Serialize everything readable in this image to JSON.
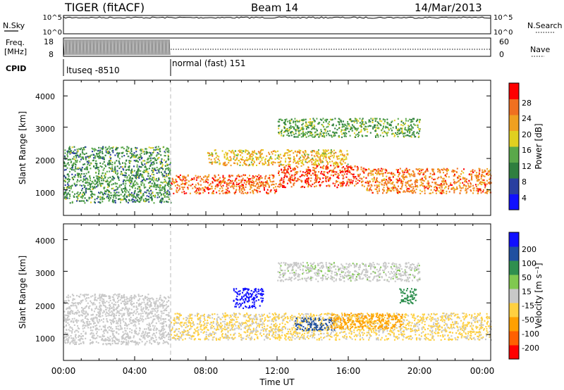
{
  "header": {
    "title": "TIGER (fitACF)",
    "beam": "Beam 14",
    "date": "14/Mar/2013"
  },
  "top_panels": {
    "nsky": {
      "label": "N.Sky",
      "ticks_left": [
        "10^5",
        "10^0"
      ],
      "ticks_right": [
        "10^5",
        "10^0"
      ],
      "right_label": "N.Search"
    },
    "freq": {
      "label_line1": "Freq.",
      "label_line2": "[MHz]",
      "ticks_left": [
        "18",
        "8"
      ],
      "ticks_right": [
        "60",
        "0"
      ],
      "right_label": "Nave"
    },
    "cpid": {
      "label": "CPID",
      "segments": [
        {
          "label": "ltuseq -8510",
          "start_hour": 0,
          "end_hour": 6
        },
        {
          "label": "normal (fast) 151",
          "start_hour": 6,
          "end_hour": 24
        }
      ]
    }
  },
  "colors": {
    "power": [
      "#1010ff",
      "#2a3fa0",
      "#2f7f3f",
      "#5aa84a",
      "#e0d020",
      "#f0a020",
      "#f07020",
      "#ff0000"
    ],
    "velocity": [
      "#ff0000",
      "#ff6000",
      "#ffa000",
      "#ffd040",
      "#c8c8c8",
      "#80c850",
      "#2f8f4f",
      "#2050a0",
      "#1010ff"
    ]
  },
  "chart_data": [
    {
      "type": "heatmap",
      "name": "power",
      "title": "",
      "xlabel": "",
      "ylabel": "Slant Range [km]",
      "xlim": [
        0,
        24
      ],
      "ylim": [
        180,
        4500
      ],
      "yticks": [
        "1000",
        "2000",
        "3000",
        "4000"
      ],
      "colorbar": {
        "label": "Power [dB]",
        "range": [
          0,
          32
        ],
        "ticks": [
          "4",
          "8",
          "12",
          "16",
          "20",
          "24",
          "28"
        ]
      },
      "bands": [
        {
          "t0": 0,
          "t1": 6,
          "r0": 600,
          "r1": 2400,
          "level": 0.35
        },
        {
          "t0": 6,
          "t1": 12,
          "r0": 900,
          "r1": 1500,
          "level": 0.85
        },
        {
          "t0": 12,
          "t1": 17,
          "r0": 1100,
          "r1": 1800,
          "level": 0.9
        },
        {
          "t0": 17,
          "t1": 24,
          "r0": 900,
          "r1": 1700,
          "level": 0.8
        },
        {
          "t0": 8,
          "t1": 16,
          "r0": 1800,
          "r1": 2300,
          "level": 0.65
        },
        {
          "t0": 12,
          "t1": 20,
          "r0": 2700,
          "r1": 3300,
          "level": 0.4
        }
      ]
    },
    {
      "type": "heatmap",
      "name": "velocity",
      "title": "",
      "xlabel": "Time UT",
      "ylabel": "Slant Range [km]",
      "xlim": [
        0,
        24
      ],
      "ylim": [
        180,
        4500
      ],
      "xticks": [
        "00:00",
        "04:00",
        "08:00",
        "12:00",
        "16:00",
        "20:00",
        "00:00"
      ],
      "yticks": [
        "1000",
        "2000",
        "3000",
        "4000"
      ],
      "colorbar": {
        "label": "Velocity [m s⁻¹]",
        "ticks": [
          "200",
          "100",
          "50",
          "15",
          "-15",
          "-50",
          "-100",
          "-200"
        ]
      },
      "bands": [
        {
          "t0": 0,
          "t1": 6,
          "r0": 700,
          "r1": 2300,
          "vel": 0
        },
        {
          "t0": 6,
          "t1": 24,
          "r0": 850,
          "r1": 1700,
          "vel": -20
        },
        {
          "t0": 9.5,
          "t1": 11.2,
          "r0": 1850,
          "r1": 2500,
          "vel": 200
        },
        {
          "t0": 13,
          "t1": 15.2,
          "r0": 1150,
          "r1": 1550,
          "vel": 110
        },
        {
          "t0": 15,
          "t1": 19,
          "r0": 1200,
          "r1": 1700,
          "vel": -80
        },
        {
          "t0": 18.8,
          "t1": 19.8,
          "r0": 2000,
          "r1": 2500,
          "vel": 60
        },
        {
          "t0": 12,
          "t1": 20,
          "r0": 2700,
          "r1": 3300,
          "vel": 5
        }
      ]
    }
  ]
}
